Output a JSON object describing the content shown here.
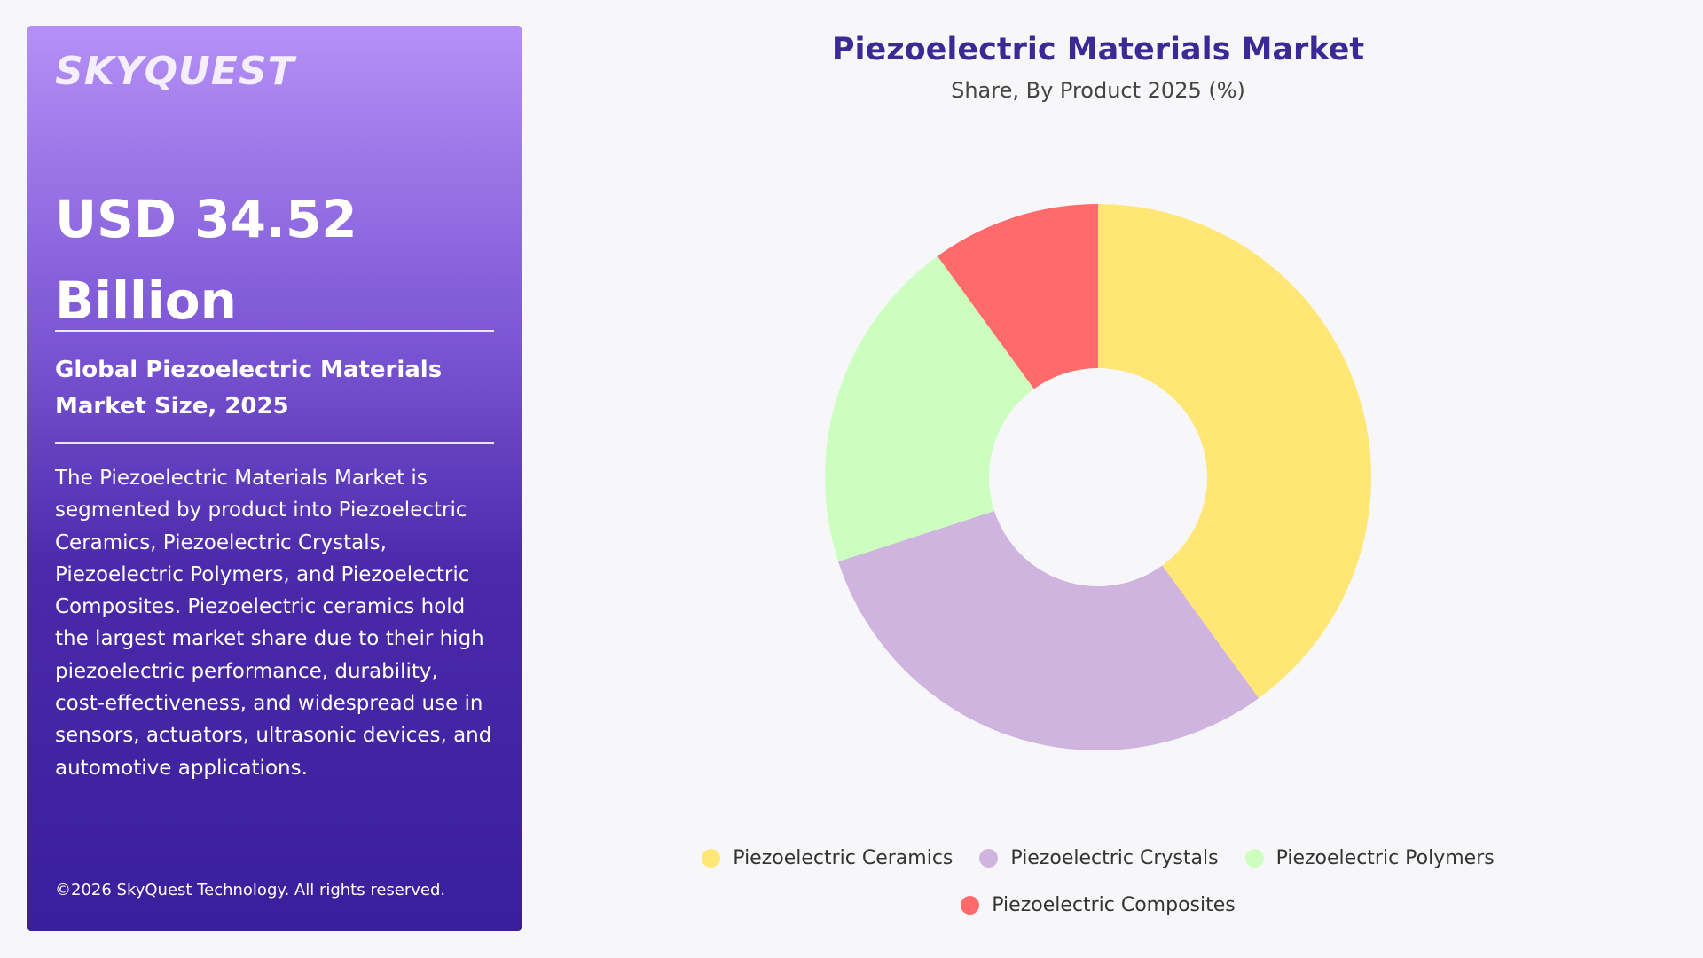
{
  "panel": {
    "logo": "SKYQUEST",
    "headline": "USD 34.52 Billion",
    "subtitle": "Global Piezoelectric Materials Market Size, 2025",
    "description": "The Piezoelectric Materials Market is segmented by product into Piezoelectric Ceramics, Piezoelectric Crystals, Piezoelectric Polymers, and Piezoelectric Composites. Piezoelectric ceramics hold the largest market share due to their high piezoelectric performance, durability, cost-effectiveness, and widespread use in sensors, actuators, ultrasonic devices, and automotive applications.",
    "copyright": "©2026 SkyQuest Technology. All rights reserved."
  },
  "chart_data": {
    "type": "donut",
    "title": "Piezoelectric Materials Market",
    "subtitle": "Share, By Product 2025 (%)",
    "categories": [
      "Piezoelectric Ceramics",
      "Piezoelectric Crystals",
      "Piezoelectric Polymers",
      "Piezoelectric Composites"
    ],
    "values": [
      40,
      30,
      20,
      10
    ],
    "colors": [
      "#ffe675",
      "#d0b4e0",
      "#ccffbf",
      "#ff6b6b"
    ]
  }
}
